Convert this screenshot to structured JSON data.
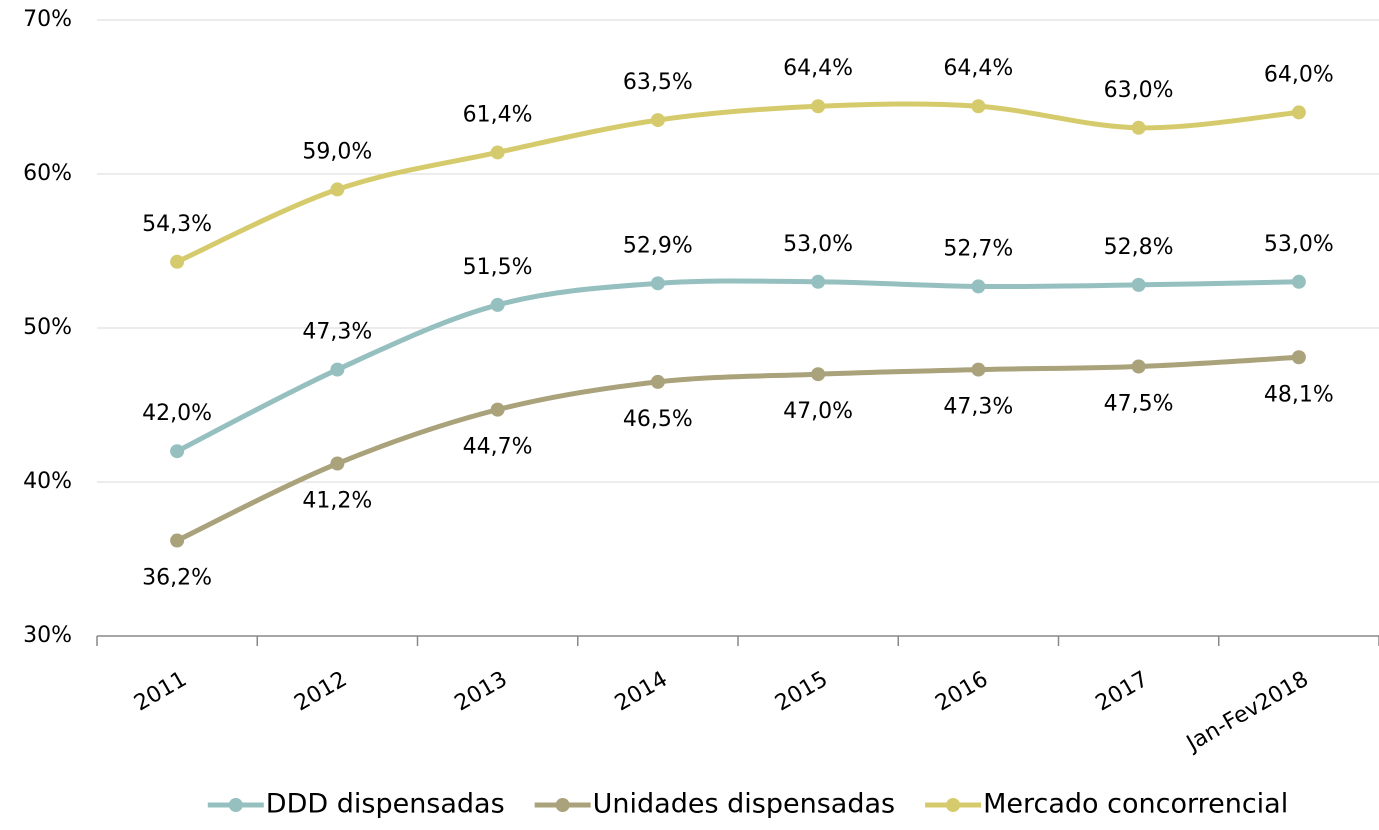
{
  "chart_data": {
    "type": "line",
    "categories": [
      "2011",
      "2012",
      "2013",
      "2014",
      "2015",
      "2016",
      "2017",
      "Jan-Fev2018"
    ],
    "series": [
      {
        "name": "DDD dispensadas",
        "color": "#95c0bf",
        "label_position": "above",
        "values": [
          42.0,
          47.3,
          51.5,
          52.9,
          53.0,
          52.7,
          52.8,
          53.0
        ],
        "value_labels": [
          "42,0%",
          "47,3%",
          "51,5%",
          "52,9%",
          "53,0%",
          "52,7%",
          "52,8%",
          "53,0%"
        ]
      },
      {
        "name": "Unidades dispensadas",
        "color": "#a9a27b",
        "label_position": "below",
        "values": [
          36.2,
          41.2,
          44.7,
          46.5,
          47.0,
          47.3,
          47.5,
          48.1
        ],
        "value_labels": [
          "36,2%",
          "41,2%",
          "44,7%",
          "46,5%",
          "47,0%",
          "47,3%",
          "47,5%",
          "48,1%"
        ]
      },
      {
        "name": "Mercado concorrencial",
        "color": "#d6cb6c",
        "label_position": "above",
        "values": [
          54.3,
          59.0,
          61.4,
          63.5,
          64.4,
          64.4,
          63.0,
          64.0
        ],
        "value_labels": [
          "54,3%",
          "59,0%",
          "61,4%",
          "63,5%",
          "64,4%",
          "64,4%",
          "63,0%",
          "64,0%"
        ]
      }
    ],
    "ylim": [
      30,
      70
    ],
    "yticks": [
      {
        "value": 30,
        "label": "30%"
      },
      {
        "value": 40,
        "label": "40%"
      },
      {
        "value": 50,
        "label": "50%"
      },
      {
        "value": 60,
        "label": "60%"
      },
      {
        "value": 70,
        "label": "70%"
      }
    ],
    "grid": true,
    "legend": "bottom"
  }
}
